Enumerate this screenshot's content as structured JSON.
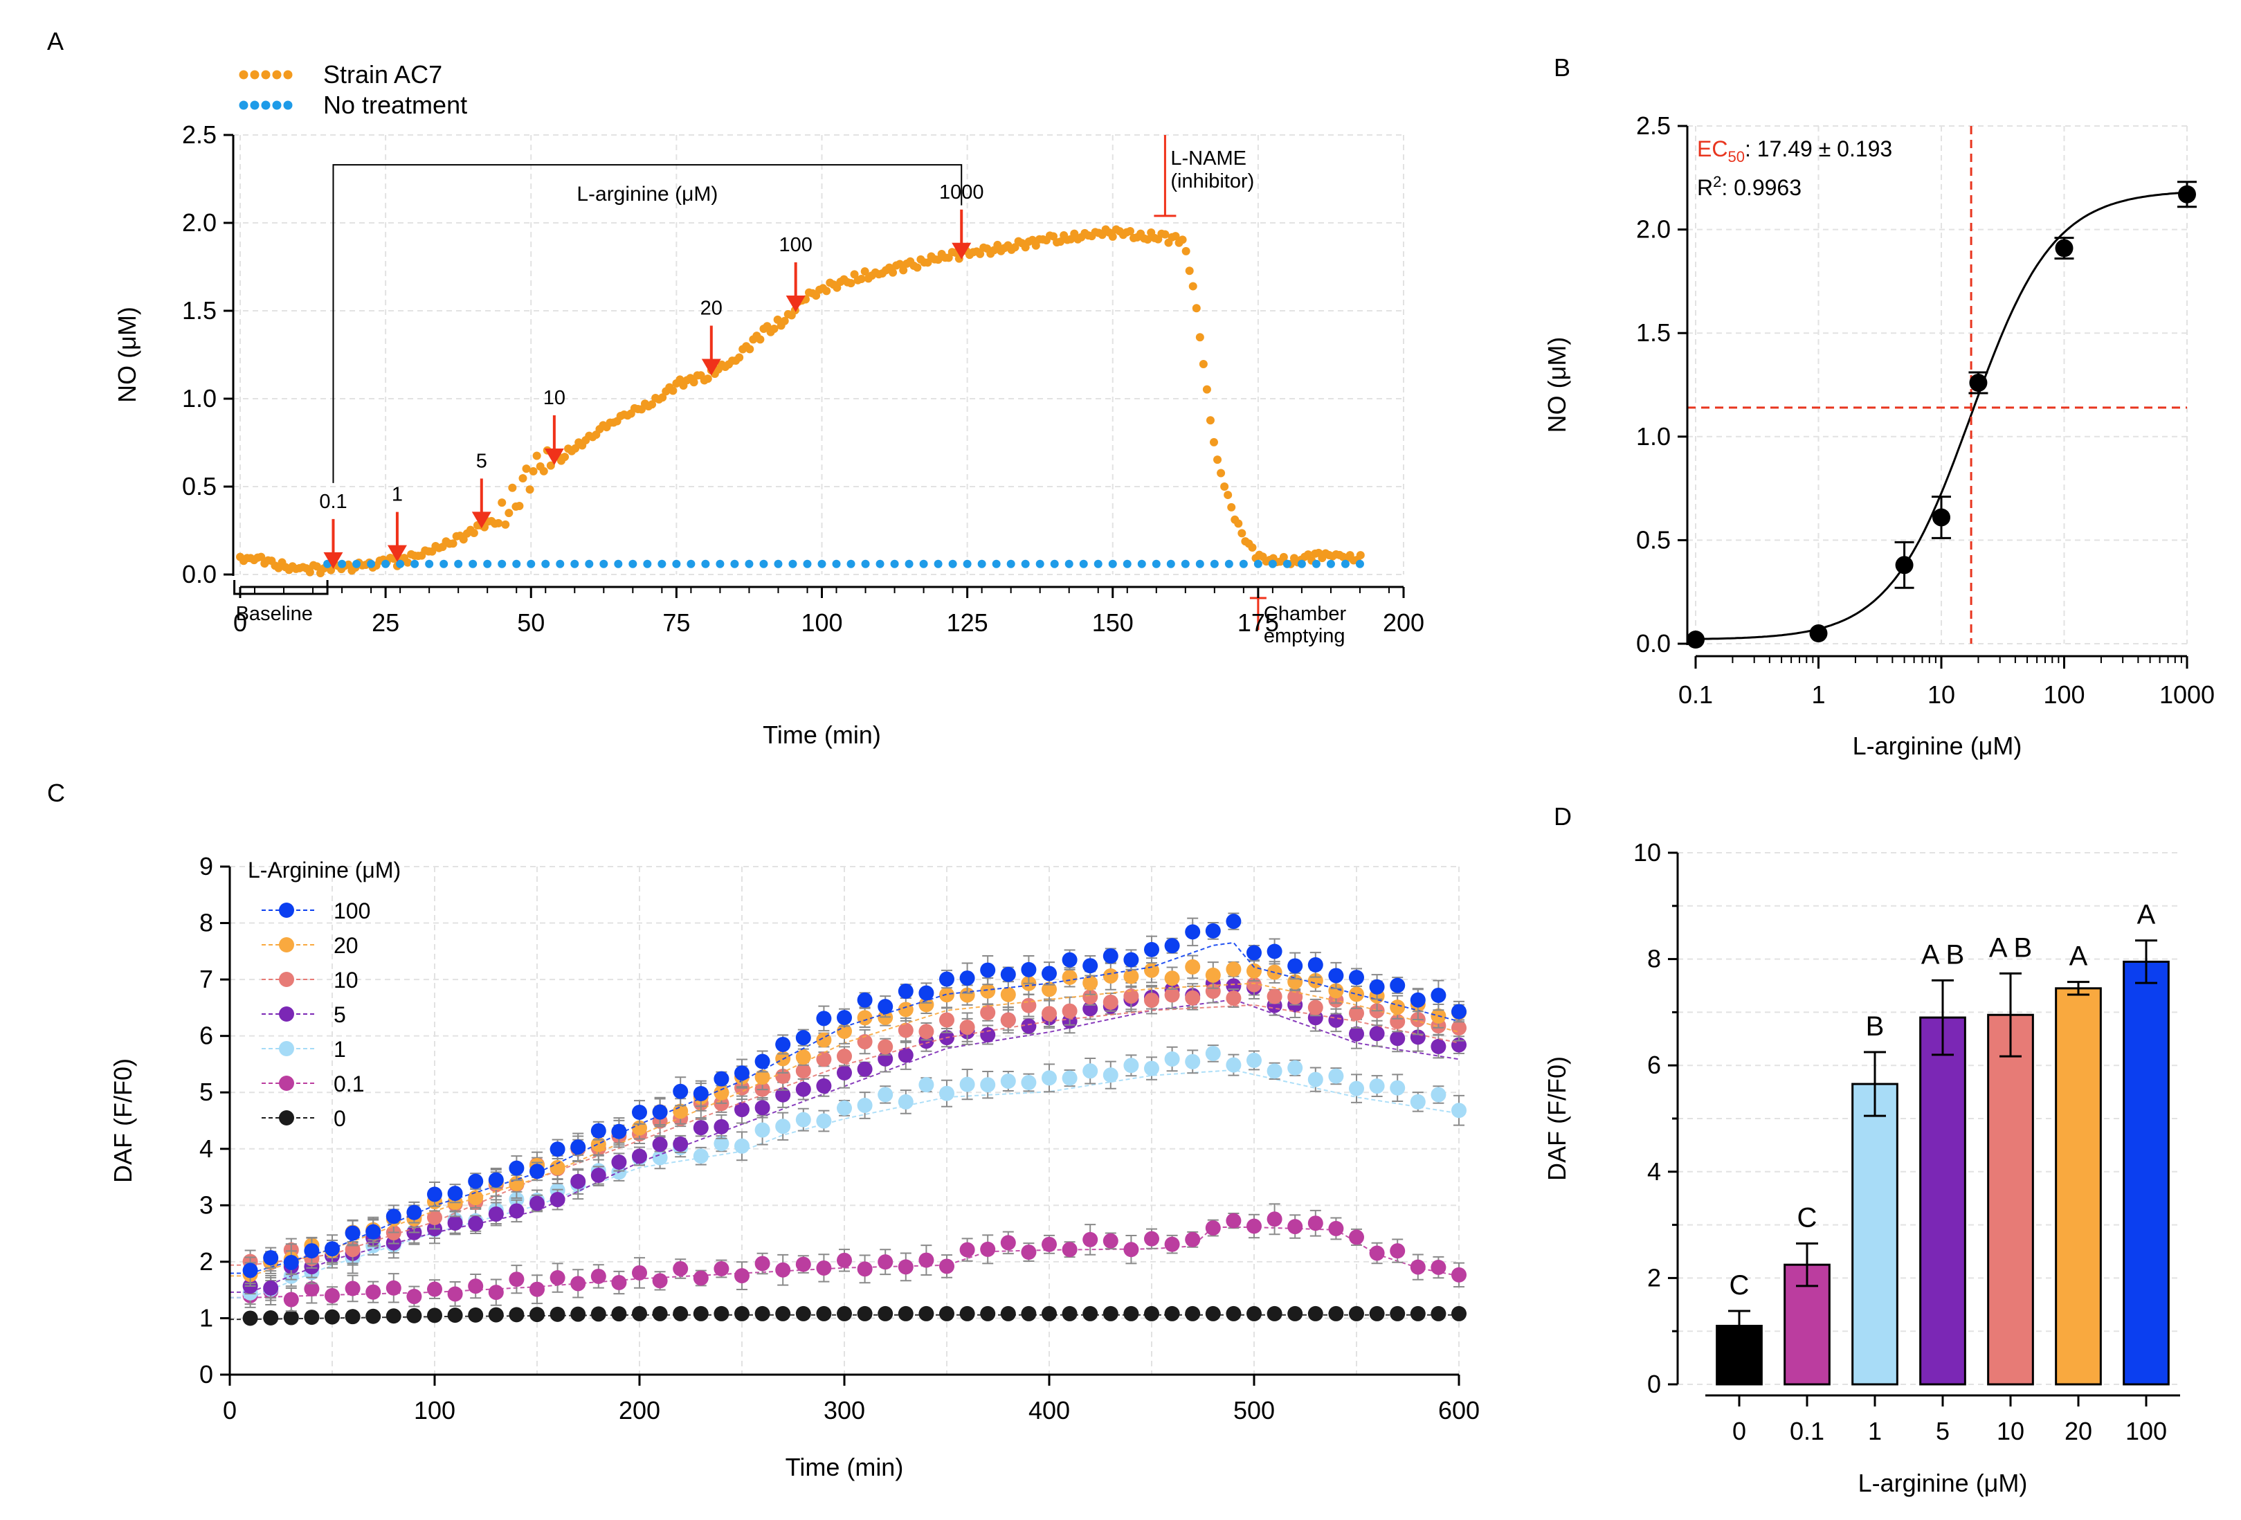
{
  "chart_data": [
    {
      "panel": "A",
      "type": "scatter",
      "xlabel": "Time (min)",
      "ylabel": "NO (μM)",
      "xlim": [
        0,
        200
      ],
      "ylim": [
        0,
        2.5
      ],
      "xticks": [
        "0",
        "25",
        "50",
        "75",
        "100",
        "125",
        "150",
        "175",
        "200"
      ],
      "yticks": [
        "0.0",
        "0.5",
        "1.0",
        "1.5",
        "2.0",
        "2.5"
      ],
      "grid": true,
      "legend": "top-left",
      "series": [
        {
          "name": "Strain AC7",
          "color": "#f39a1e",
          "x": [
            0,
            5,
            10,
            15,
            20,
            25,
            27,
            30,
            35,
            40,
            42,
            45,
            48,
            50,
            52,
            55,
            60,
            65,
            70,
            75,
            80,
            82,
            85,
            90,
            95,
            96,
            100,
            105,
            110,
            115,
            120,
            124,
            130,
            135,
            140,
            145,
            150,
            155,
            158,
            160,
            162,
            163,
            164,
            165,
            166,
            167,
            168,
            170,
            172,
            174,
            176,
            178,
            180,
            185,
            190,
            193
          ],
          "y": [
            0.1,
            0.07,
            0.04,
            0.03,
            0.05,
            0.07,
            0.07,
            0.1,
            0.17,
            0.24,
            0.28,
            0.32,
            0.48,
            0.58,
            0.62,
            0.66,
            0.78,
            0.88,
            0.97,
            1.08,
            1.13,
            1.17,
            1.22,
            1.38,
            1.48,
            1.55,
            1.62,
            1.68,
            1.72,
            1.76,
            1.8,
            1.82,
            1.85,
            1.88,
            1.91,
            1.93,
            1.94,
            1.93,
            1.92,
            1.91,
            1.9,
            1.78,
            1.6,
            1.35,
            1.1,
            0.85,
            0.65,
            0.42,
            0.24,
            0.13,
            0.08,
            0.07,
            0.08,
            0.1,
            0.11,
            0.1
          ]
        },
        {
          "name": "No treatment",
          "color": "#1e9be8",
          "x_range": [
            15,
            193
          ],
          "y_const": 0.06
        }
      ],
      "annotations": {
        "bracket_label": "L-arginine (μM)",
        "baseline_label": "Baseline",
        "lname_label_1": "L-NAME",
        "lname_label_2": "(inhibitor)",
        "chamber_label_1": "Chamber",
        "chamber_label_2": "emptying",
        "arrows": [
          {
            "x": 16,
            "y": 0.04,
            "label": "0.1"
          },
          {
            "x": 27,
            "y": 0.08,
            "label": "1"
          },
          {
            "x": 41.5,
            "y": 0.27,
            "label": "5"
          },
          {
            "x": 54,
            "y": 0.63,
            "label": "10"
          },
          {
            "x": 81,
            "y": 1.14,
            "label": "20"
          },
          {
            "x": 95.5,
            "y": 1.5,
            "label": "100"
          },
          {
            "x": 124,
            "y": 1.8,
            "label": "1000"
          }
        ]
      }
    },
    {
      "panel": "B",
      "type": "scatter",
      "xscale": "log",
      "xlabel": "L-arginine (μM)",
      "ylabel": "NO (μM)",
      "xlim": [
        0.1,
        1000
      ],
      "ylim": [
        0,
        2.5
      ],
      "xticks": [
        "0.1",
        "1",
        "10",
        "100",
        "1000"
      ],
      "yticks": [
        "0.0",
        "0.5",
        "1.0",
        "1.5",
        "2.0",
        "2.5"
      ],
      "x": [
        0.1,
        1,
        5,
        10,
        20,
        100,
        1000
      ],
      "y": [
        0.02,
        0.05,
        0.38,
        0.61,
        1.26,
        1.91,
        2.17
      ],
      "err": [
        0.0,
        0.0,
        0.11,
        0.1,
        0.05,
        0.05,
        0.06
      ],
      "fit": {
        "bottom": 0.02,
        "top": 2.19,
        "ec50": 17.49,
        "hill": 1.3
      },
      "ec50_line_y": 1.14,
      "annotations": {
        "ec_label": "EC",
        "ec_sub": "50",
        "ec_value": ": 17.49 ± 0.193",
        "r_label": "R",
        "r_sup": "2",
        "r_value": ": 0.9963"
      }
    },
    {
      "panel": "C",
      "type": "scatter",
      "xlabel": "Time (min)",
      "ylabel": "DAF (F/F0)",
      "xlim": [
        0,
        600
      ],
      "ylim": [
        0,
        9
      ],
      "xticks": [
        "0",
        "100",
        "200",
        "300",
        "400",
        "500",
        "600"
      ],
      "yticks": [
        "0",
        "1",
        "2",
        "3",
        "4",
        "5",
        "6",
        "7",
        "8",
        "9"
      ],
      "legend_title": "L-Arginine (μM)",
      "series": [
        {
          "name": "100",
          "color": "#0b3ff0",
          "x": [
            10,
            50,
            100,
            150,
            200,
            250,
            300,
            350,
            400,
            450,
            480,
            490,
            500,
            550,
            600
          ],
          "y": [
            1.85,
            2.3,
            3.1,
            3.7,
            4.6,
            5.4,
            6.4,
            7.0,
            7.2,
            7.5,
            7.9,
            7.95,
            7.5,
            7.0,
            6.5
          ]
        },
        {
          "name": "20",
          "color": "#f9a93f",
          "x": [
            10,
            50,
            100,
            150,
            200,
            250,
            300,
            350,
            400,
            450,
            500,
            550,
            600
          ],
          "y": [
            1.8,
            2.3,
            3.0,
            3.6,
            4.4,
            5.2,
            6.1,
            6.7,
            6.9,
            7.1,
            7.2,
            6.8,
            6.3
          ]
        },
        {
          "name": "10",
          "color": "#e77b76",
          "x": [
            10,
            50,
            100,
            150,
            200,
            250,
            300,
            350,
            400,
            450,
            500,
            550,
            600
          ],
          "y": [
            2.0,
            2.2,
            2.8,
            3.6,
            4.3,
            5.0,
            5.7,
            6.2,
            6.5,
            6.7,
            6.8,
            6.5,
            6.1
          ]
        },
        {
          "name": "5",
          "color": "#7b27b5",
          "x": [
            10,
            50,
            100,
            150,
            200,
            250,
            300,
            350,
            400,
            450,
            490,
            550,
            600
          ],
          "y": [
            1.5,
            2.1,
            2.6,
            3.0,
            3.9,
            4.6,
            5.3,
            6.0,
            6.3,
            6.7,
            6.9,
            6.1,
            5.8
          ]
        },
        {
          "name": "1",
          "color": "#a5dbf7",
          "x": [
            10,
            50,
            100,
            150,
            200,
            250,
            270,
            300,
            350,
            400,
            450,
            490,
            550,
            600
          ],
          "y": [
            1.4,
            2.0,
            2.6,
            3.1,
            3.8,
            4.1,
            4.4,
            4.7,
            5.1,
            5.2,
            5.5,
            5.6,
            5.1,
            4.8
          ]
        },
        {
          "name": "0.1",
          "color": "#bb3d9f",
          "x": [
            10,
            50,
            100,
            150,
            200,
            250,
            300,
            350,
            370,
            400,
            450,
            470,
            480,
            500,
            540,
            560,
            580,
            600
          ],
          "y": [
            1.4,
            1.45,
            1.5,
            1.6,
            1.75,
            1.85,
            1.95,
            2.0,
            2.25,
            2.28,
            2.3,
            2.35,
            2.7,
            2.7,
            2.65,
            2.2,
            1.95,
            1.8
          ]
        },
        {
          "name": "0",
          "color": "#1b1b1b",
          "x": [
            10,
            100,
            200,
            300,
            400,
            500,
            600
          ],
          "y": [
            1.0,
            1.05,
            1.08,
            1.08,
            1.08,
            1.08,
            1.08
          ]
        }
      ]
    },
    {
      "panel": "D",
      "type": "bar",
      "xlabel": "L-arginine (μM)",
      "ylabel": "DAF (F/F0)",
      "ylim": [
        0,
        10
      ],
      "yticks": [
        "0",
        "2",
        "4",
        "6",
        "8",
        "10"
      ],
      "categories": [
        "0",
        "0.1",
        "1",
        "5",
        "10",
        "20",
        "100"
      ],
      "values": [
        1.1,
        2.25,
        5.65,
        6.9,
        6.95,
        7.45,
        7.95
      ],
      "err": [
        0.28,
        0.4,
        0.6,
        0.7,
        0.78,
        0.12,
        0.4
      ],
      "letters": [
        "C",
        "C",
        "B",
        "A B",
        "A B",
        "A",
        "A"
      ],
      "colors": [
        "#000000",
        "#bb3d9f",
        "#a8dcf7",
        "#7b27b5",
        "#e77b76",
        "#f9a93f",
        "#0b3ff0"
      ]
    }
  ],
  "panel_labels": {
    "a": "A",
    "b": "B",
    "c": "C",
    "d": "D"
  }
}
